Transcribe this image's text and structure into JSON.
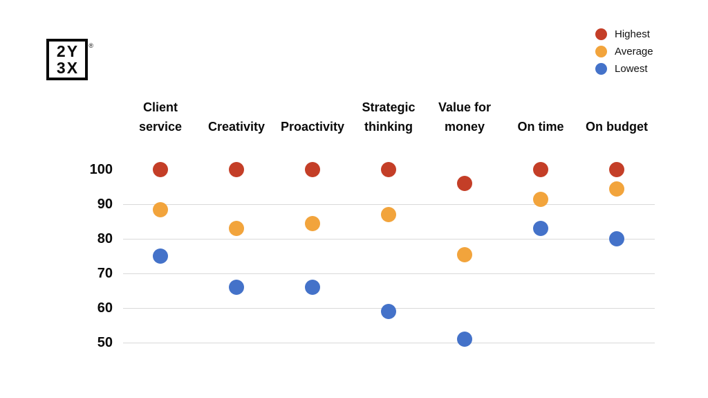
{
  "logo": {
    "line1": "2Y",
    "line2": "3X",
    "registered_mark": "®"
  },
  "legend": {
    "position": "top-right",
    "items": [
      {
        "label": "Highest",
        "color": "#c43e27"
      },
      {
        "label": "Average",
        "color": "#f2a43c"
      },
      {
        "label": "Lowest",
        "color": "#4472c9"
      }
    ]
  },
  "chart_data": {
    "type": "scatter",
    "title": "",
    "xlabel": "",
    "ylabel": "",
    "categories": [
      "Client service",
      "Creativity",
      "Proactivity",
      "Strategic thinking",
      "Value for money",
      "On time",
      "On budget"
    ],
    "category_label_lines": [
      [
        "Client",
        "service"
      ],
      [
        "Creativity"
      ],
      [
        "Proactivity"
      ],
      [
        "Strategic",
        "thinking"
      ],
      [
        "Value for",
        "money"
      ],
      [
        "On time"
      ],
      [
        "On budget"
      ]
    ],
    "series": [
      {
        "name": "Highest",
        "color": "#c43e27",
        "values": [
          100,
          100,
          100,
          100,
          96,
          100,
          100
        ]
      },
      {
        "name": "Average",
        "color": "#f2a43c",
        "values": [
          88.5,
          83,
          84.5,
          87,
          75.5,
          91.5,
          94.5
        ]
      },
      {
        "name": "Lowest",
        "color": "#4472c9",
        "values": [
          75,
          66,
          66,
          59,
          51,
          83,
          80
        ]
      }
    ],
    "yticks": [
      100,
      90,
      80,
      70,
      60,
      50
    ],
    "ylim": [
      50,
      100
    ],
    "grid": "horizontal gridlines at 90, 80, 70, 60, 50 (none at 100)",
    "grid_color": "#d9d9d9",
    "legend_position": "top-right"
  }
}
